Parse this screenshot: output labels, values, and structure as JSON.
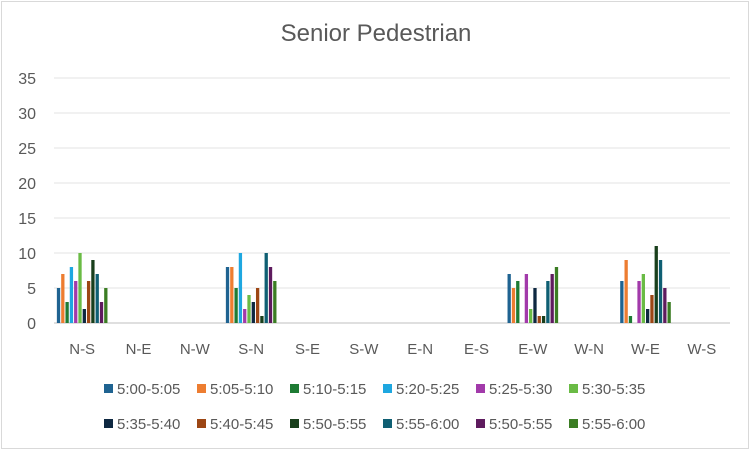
{
  "chart_data": {
    "type": "bar",
    "title": "Senior Pedestrian",
    "xlabel": "",
    "ylabel": "",
    "ylim": [
      0,
      35
    ],
    "yticks": [
      0,
      5,
      10,
      15,
      20,
      25,
      30,
      35
    ],
    "grid": true,
    "legend_position": "bottom",
    "categories": [
      "N-S",
      "N-E",
      "N-W",
      "S-N",
      "S-E",
      "S-W",
      "E-N",
      "E-S",
      "E-W",
      "W-N",
      "W-E",
      "W-S"
    ],
    "series": [
      {
        "name": "5:00-5:05",
        "color": "#1f6391",
        "values": [
          5,
          0,
          0,
          8,
          0,
          0,
          0,
          0,
          7,
          0,
          6,
          0
        ]
      },
      {
        "name": "5:05-5:10",
        "color": "#ed7d31",
        "values": [
          7,
          0,
          0,
          8,
          0,
          0,
          0,
          0,
          5,
          0,
          9,
          0
        ]
      },
      {
        "name": "5:10-5:15",
        "color": "#1e7b34",
        "values": [
          3,
          0,
          0,
          5,
          0,
          0,
          0,
          0,
          6,
          0,
          1,
          0
        ]
      },
      {
        "name": "5:20-5:25",
        "color": "#1ea7e0",
        "values": [
          8,
          0,
          0,
          10,
          0,
          0,
          0,
          0,
          0,
          0,
          0,
          0
        ]
      },
      {
        "name": "5:25-5:30",
        "color": "#a23aaa",
        "values": [
          6,
          0,
          0,
          2,
          0,
          0,
          0,
          0,
          7,
          0,
          6,
          0
        ]
      },
      {
        "name": "5:30-5:35",
        "color": "#6abb45",
        "values": [
          10,
          0,
          0,
          4,
          0,
          0,
          0,
          0,
          2,
          0,
          7,
          0
        ]
      },
      {
        "name": "5:35-5:40",
        "color": "#0e2841",
        "values": [
          2,
          0,
          0,
          3,
          0,
          0,
          0,
          0,
          5,
          0,
          2,
          0
        ]
      },
      {
        "name": "5:40-5:45",
        "color": "#9c4614",
        "values": [
          6,
          0,
          0,
          5,
          0,
          0,
          0,
          0,
          1,
          0,
          4,
          0
        ]
      },
      {
        "name": "5:50-5:55",
        "color": "#193f1c",
        "values": [
          9,
          0,
          0,
          1,
          0,
          0,
          0,
          0,
          1,
          0,
          11,
          0
        ]
      },
      {
        "name": "5:55-6:00",
        "color": "#0f5f73",
        "values": [
          7,
          0,
          0,
          10,
          0,
          0,
          0,
          0,
          6,
          0,
          9,
          0
        ]
      },
      {
        "name": "5:50-5:55",
        "color": "#5e1b5e",
        "values": [
          3,
          0,
          0,
          8,
          0,
          0,
          0,
          0,
          7,
          0,
          5,
          0
        ]
      },
      {
        "name": "5:55-6:00",
        "color": "#3b7d23",
        "values": [
          5,
          0,
          0,
          6,
          0,
          0,
          0,
          0,
          8,
          0,
          3,
          0
        ]
      }
    ]
  }
}
